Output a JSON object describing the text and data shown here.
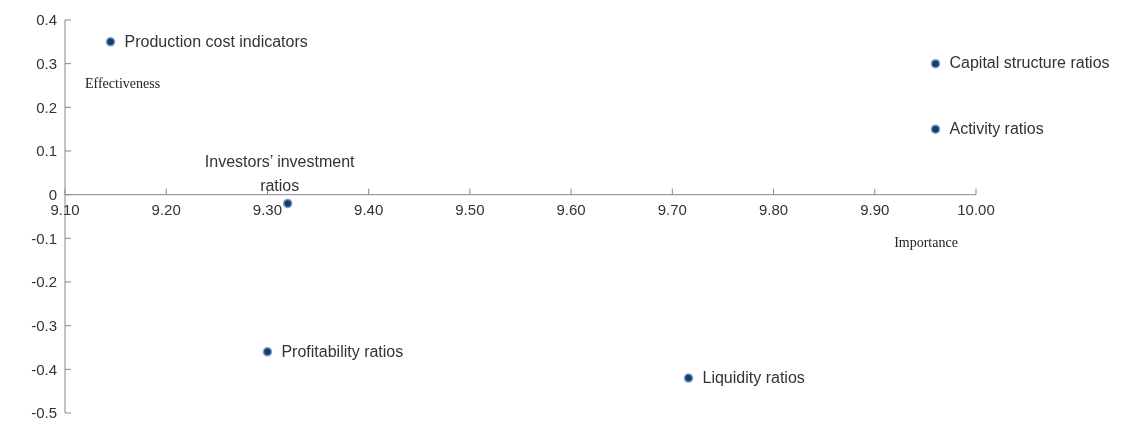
{
  "chart_data": {
    "type": "scatter",
    "xlabel": "Importance",
    "ylabel": "Effectiveness",
    "marker": "circle",
    "grid": false,
    "xlim": [
      9.1,
      10.0
    ],
    "xticks": [
      {
        "value": 9.1,
        "label": "9.10"
      },
      {
        "value": 9.2,
        "label": "9.20"
      },
      {
        "value": 9.3,
        "label": "9.30"
      },
      {
        "value": 9.4,
        "label": "9.40"
      },
      {
        "value": 9.5,
        "label": "9.50"
      },
      {
        "value": 9.6,
        "label": "9.60"
      },
      {
        "value": 9.7,
        "label": "9.70"
      },
      {
        "value": 9.8,
        "label": "9.80"
      },
      {
        "value": 9.9,
        "label": "9.90"
      },
      {
        "value": 10.0,
        "label": "10.00"
      }
    ],
    "ylim": [
      -0.5,
      0.4
    ],
    "yticks": [
      -0.5,
      -0.4,
      -0.3,
      -0.2,
      -0.1,
      0,
      0.1,
      0.2,
      0.3,
      0.4
    ],
    "series": [
      {
        "color": "#1f3864",
        "x": [
          9.145,
          9.96,
          9.96,
          9.32,
          9.3,
          9.716
        ],
        "values": [
          0.35,
          0.3,
          0.15,
          -0.02,
          -0.36,
          -0.42
        ]
      }
    ],
    "annotations": [
      {
        "text": "Production cost indicators",
        "x": 9.145,
        "y": 0.35
      },
      {
        "text": "Capital structure ratios",
        "x": 9.96,
        "y": 0.3
      },
      {
        "text": "Activity ratios",
        "x": 9.96,
        "y": 0.15
      },
      {
        "text": "Investors’ investment ratios",
        "x": 9.32,
        "y": -0.02
      },
      {
        "text": "Profitability ratios",
        "x": 9.3,
        "y": -0.36
      },
      {
        "text": "Liquidity ratios",
        "x": 9.716,
        "y": -0.42
      }
    ]
  }
}
